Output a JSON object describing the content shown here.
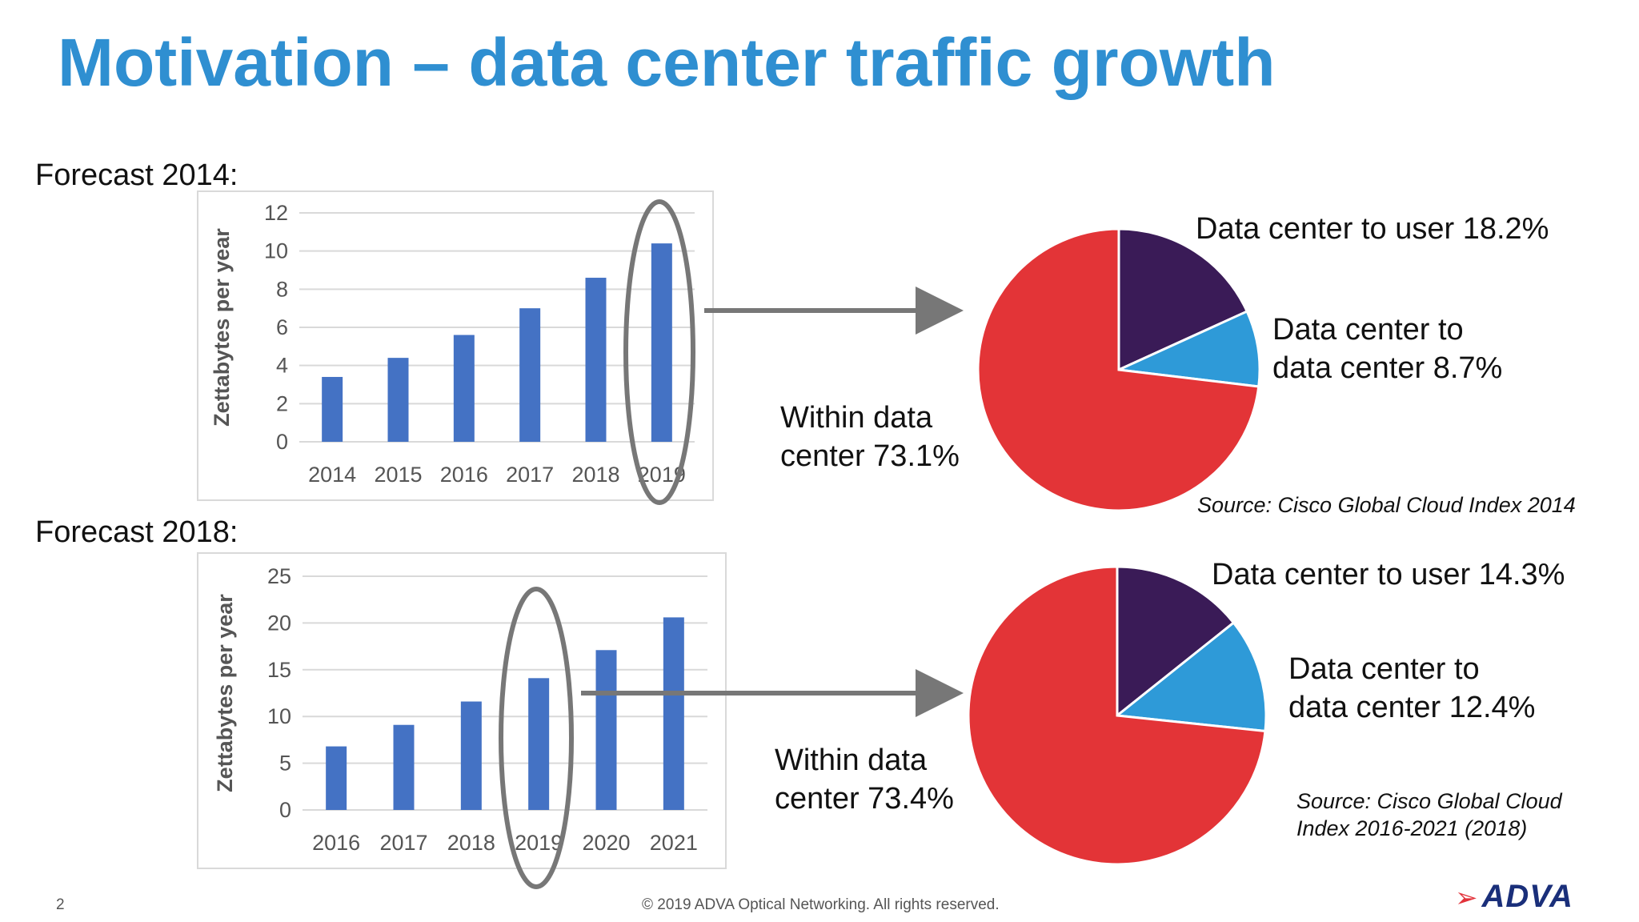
{
  "slide": {
    "title": "Motivation – data center traffic growth",
    "page_number": "2",
    "copyright": "© 2019 ADVA Optical Networking. All rights reserved.",
    "logo_text": "ADVA",
    "forecast_2014_label": "Forecast 2014:",
    "forecast_2018_label": "Forecast 2018:"
  },
  "colors": {
    "title": "#2f8fd1",
    "bar": "#4472c4",
    "within": "#e33437",
    "dc_to_user": "#3a1b57",
    "dc_to_dc": "#2e9ad8",
    "highlight": "#777777"
  },
  "chart_data": [
    {
      "type": "bar",
      "categories": [
        "2014",
        "2015",
        "2016",
        "2017",
        "2018",
        "2019"
      ],
      "values": [
        3.4,
        4.4,
        5.6,
        7.0,
        8.6,
        10.4
      ],
      "ylabel": "Zettabytes per year",
      "ylim": [
        0,
        12
      ],
      "yticks": [
        0,
        2,
        4,
        6,
        8,
        10,
        12
      ],
      "grid": true,
      "highlight_category": "2019"
    },
    {
      "type": "pie",
      "labels": [
        "Data center to user 18.2%",
        "Data center to data center 8.7%",
        "Within data center 73.1%"
      ],
      "values": [
        18.2,
        8.7,
        73.1
      ],
      "source": "Source: Cisco Global Cloud Index 2014"
    },
    {
      "type": "bar",
      "categories": [
        "2016",
        "2017",
        "2018",
        "2019",
        "2020",
        "2021"
      ],
      "values": [
        6.8,
        9.1,
        11.6,
        14.1,
        17.1,
        20.6
      ],
      "ylabel": "Zettabytes per year",
      "ylim": [
        0,
        25
      ],
      "yticks": [
        0,
        5,
        10,
        15,
        20,
        25
      ],
      "grid": true,
      "highlight_category": "2019"
    },
    {
      "type": "pie",
      "labels": [
        "Data center to user 14.3%",
        "Data center to data center 12.4%",
        "Within data center 73.4%"
      ],
      "values": [
        14.3,
        12.4,
        73.4
      ],
      "source": "Source: Cisco Global Cloud Index 2016-2021 (2018)"
    }
  ],
  "pie_text": {
    "p1": {
      "user": "Data center to user 18.2%",
      "dc_line1": "Data center to",
      "dc_line2": "data center 8.7%",
      "within_line1": "Within data",
      "within_line2": "center 73.1%",
      "source": "Source: Cisco Global Cloud Index 2014"
    },
    "p2": {
      "user": "Data center to user 14.3%",
      "dc_line1": "Data center to",
      "dc_line2": "data center 12.4%",
      "within_line1": "Within data",
      "within_line2": "center 73.4%",
      "source_line1": "Source: Cisco Global Cloud",
      "source_line2": "Index 2016-2021 (2018)"
    }
  }
}
